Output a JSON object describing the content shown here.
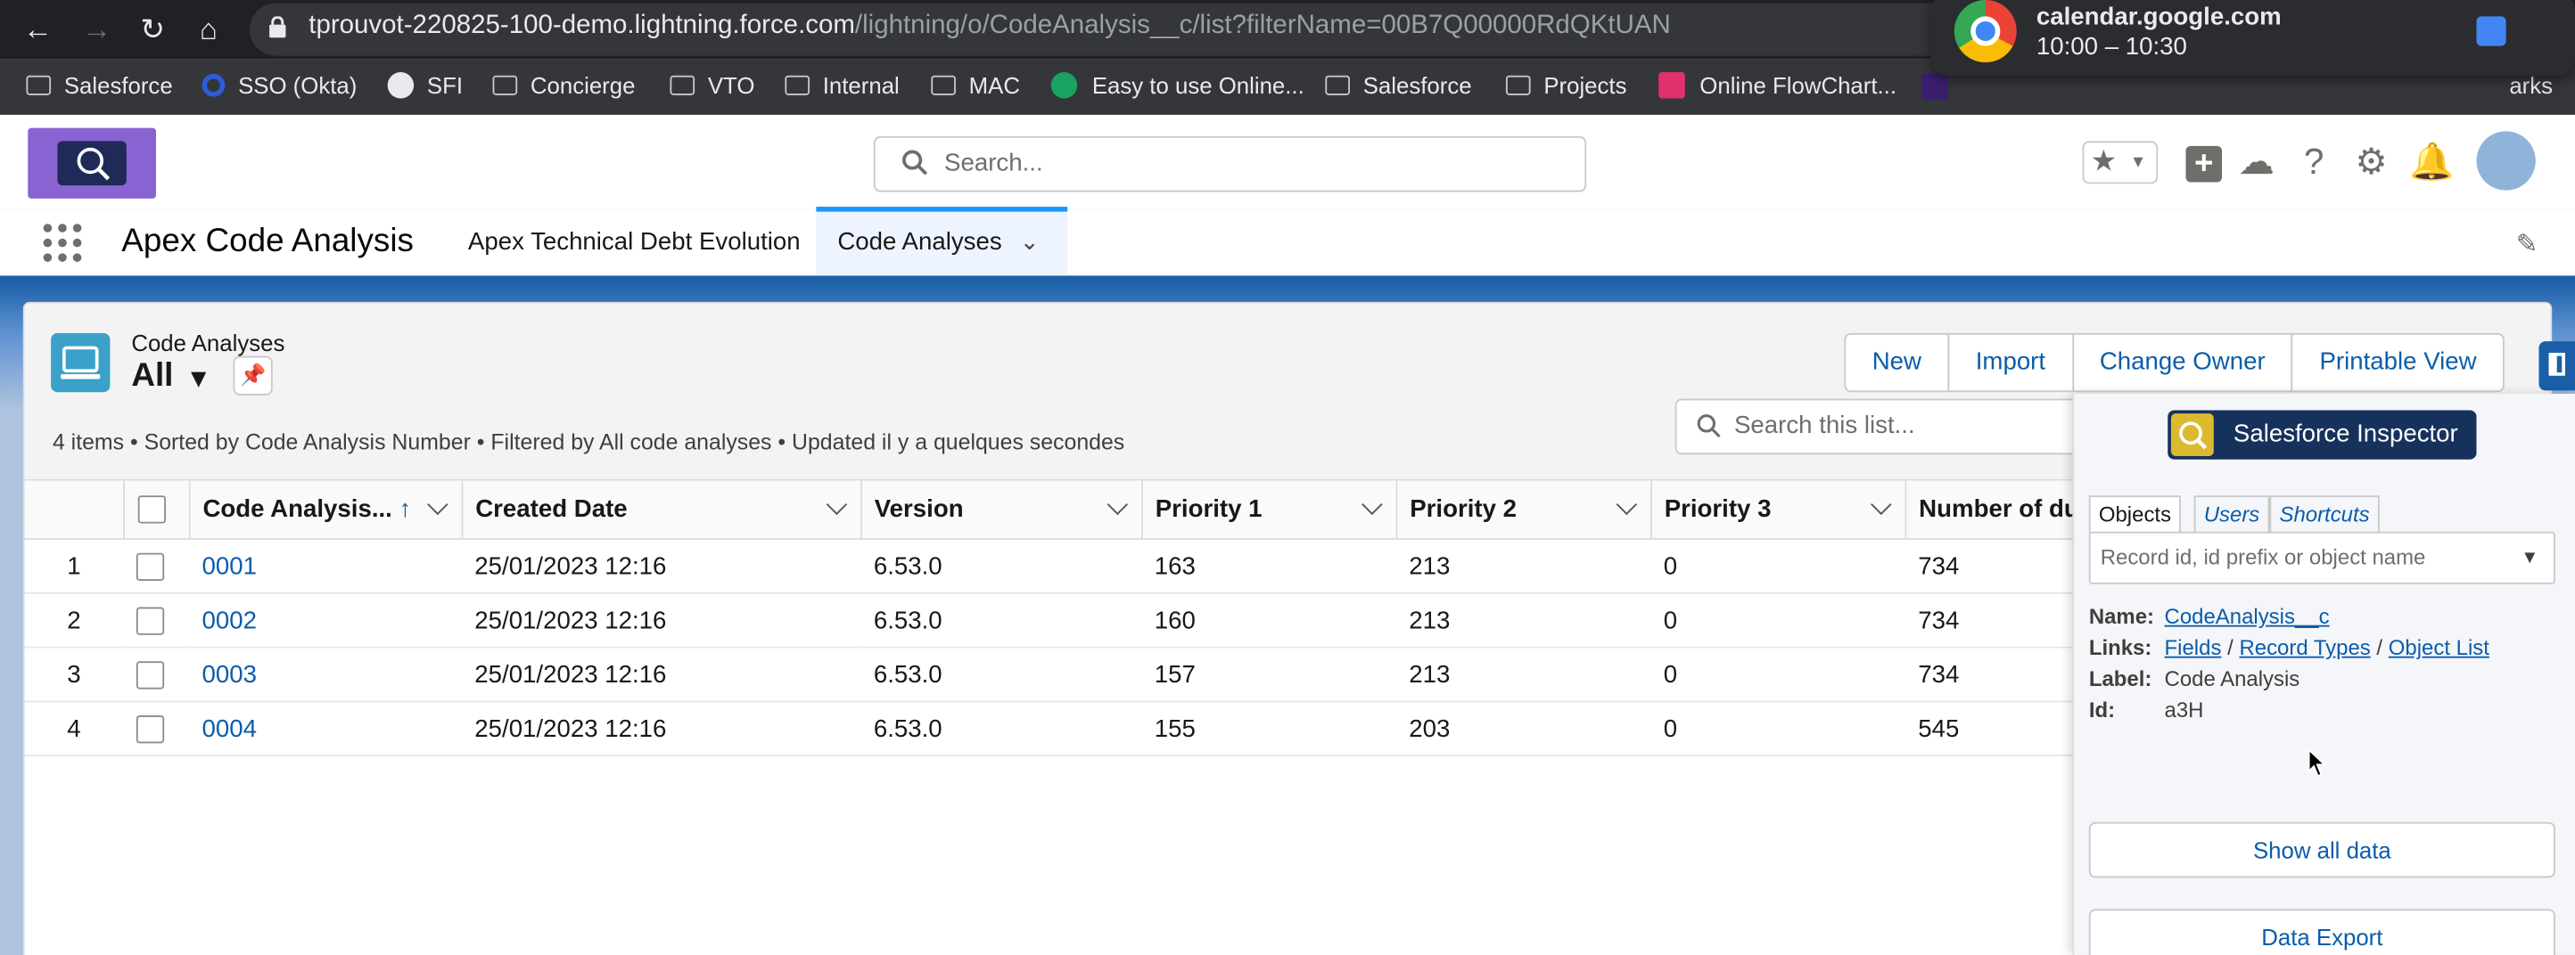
{
  "browser": {
    "url_host": "tprouvot-220825-100-demo.lightning.force.com",
    "url_path": "/lightning/o/CodeAnalysis__c/list?filterName=00B7Q00000RdQKtUAN",
    "bookmarks": [
      "Salesforce",
      "SSO (Okta)",
      "SFI",
      "Concierge",
      "VTO",
      "Internal",
      "MAC",
      "Easy to use Online...",
      "Salesforce",
      "Projects",
      "Online FlowChart..."
    ],
    "bookmarks_trailing": "arks",
    "notification": {
      "title": "calendar.google.com",
      "subtitle": "10:00 – 10:30"
    }
  },
  "header": {
    "search_placeholder": "Search..."
  },
  "nav": {
    "app_title": "Apex Code Analysis",
    "tabs": [
      {
        "label": "Apex Technical Debt Evolution"
      },
      {
        "label": "Code Analyses"
      }
    ]
  },
  "list": {
    "object_label": "Code Analyses",
    "view_name": "All",
    "buttons": [
      "New",
      "Import",
      "Change Owner",
      "Printable View"
    ],
    "summary": "4 items • Sorted by Code Analysis Number • Filtered by All code analyses • Updated il y a quelques secondes",
    "search_placeholder": "Search this list...",
    "columns": [
      "Code Analysis...",
      "Created Date",
      "Version",
      "Priority 1",
      "Priority 2",
      "Priority 3",
      "Number of du"
    ],
    "rows": [
      {
        "n": "1",
        "name": "0001",
        "created": "25/01/2023 12:16",
        "version": "6.53.0",
        "p1": "163",
        "p2": "213",
        "p3": "0",
        "dup": "734"
      },
      {
        "n": "2",
        "name": "0002",
        "created": "25/01/2023 12:16",
        "version": "6.53.0",
        "p1": "160",
        "p2": "213",
        "p3": "0",
        "dup": "734"
      },
      {
        "n": "3",
        "name": "0003",
        "created": "25/01/2023 12:16",
        "version": "6.53.0",
        "p1": "157",
        "p2": "213",
        "p3": "0",
        "dup": "734"
      },
      {
        "n": "4",
        "name": "0004",
        "created": "25/01/2023 12:16",
        "version": "6.53.0",
        "p1": "155",
        "p2": "203",
        "p3": "0",
        "dup": "545"
      }
    ]
  },
  "inspector": {
    "title": "Salesforce Inspector",
    "tabs": [
      "Objects",
      "Users",
      "Shortcuts"
    ],
    "input_placeholder": "Record id, id prefix or object name",
    "name_label": "Name:",
    "name_value": "CodeAnalysis__c",
    "links_label": "Links:",
    "links": [
      "Fields",
      "Record Types",
      "Object List"
    ],
    "link_sep": "/",
    "label_label": "Label:",
    "label_value": "Code Analysis",
    "id_label": "Id:",
    "id_value": "a3H",
    "show_all": "Show all data",
    "data_export": "Data Export"
  }
}
